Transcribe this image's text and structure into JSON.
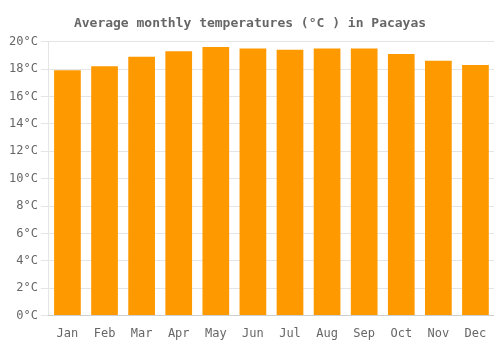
{
  "chart_data": {
    "type": "bar",
    "title": "Average monthly temperatures (°C ) in Pacayas",
    "categories": [
      "Jan",
      "Feb",
      "Mar",
      "Apr",
      "May",
      "Jun",
      "Jul",
      "Aug",
      "Sep",
      "Oct",
      "Nov",
      "Dec"
    ],
    "values": [
      17.9,
      18.2,
      18.9,
      19.3,
      19.6,
      19.5,
      19.4,
      19.5,
      19.5,
      19.1,
      18.6,
      18.3
    ],
    "color": "#ff9900",
    "ylim": [
      0,
      20
    ],
    "yticks": [
      {
        "value": 0,
        "label": "0°C"
      },
      {
        "value": 2,
        "label": "2°C"
      },
      {
        "value": 4,
        "label": "4°C"
      },
      {
        "value": 6,
        "label": "6°C"
      },
      {
        "value": 8,
        "label": "8°C"
      },
      {
        "value": 10,
        "label": "10°C"
      },
      {
        "value": 12,
        "label": "12°C"
      },
      {
        "value": 14,
        "label": "14°C"
      },
      {
        "value": 16,
        "label": "16°C"
      },
      {
        "value": 18,
        "label": "18°C"
      },
      {
        "value": 20,
        "label": "20°C"
      }
    ],
    "grid": true
  }
}
